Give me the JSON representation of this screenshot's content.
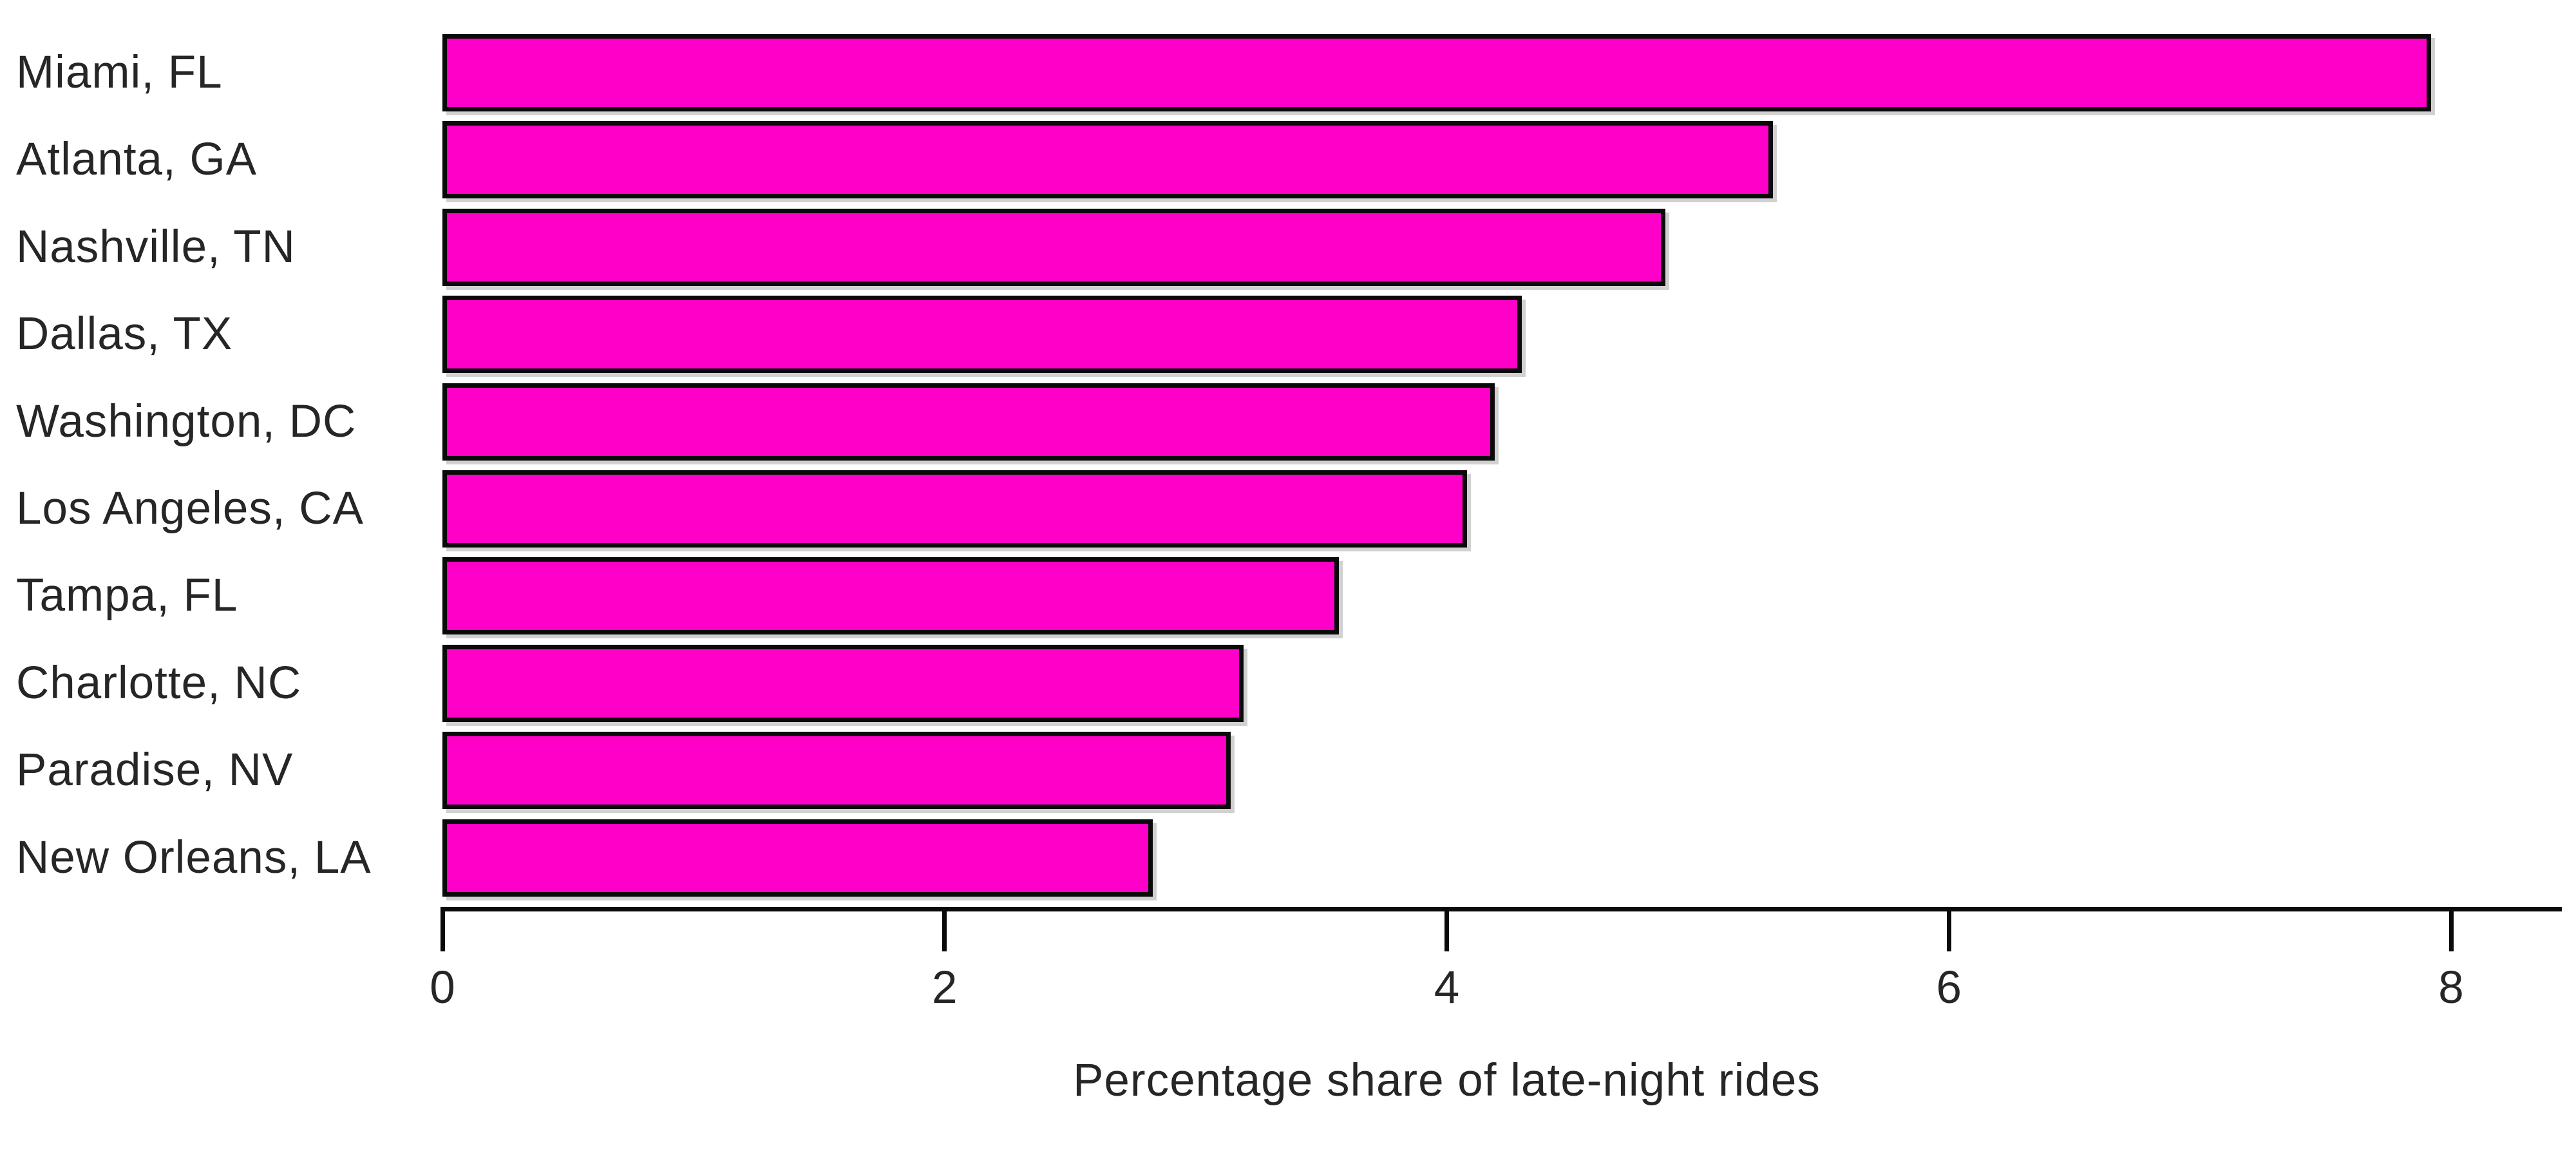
{
  "chart_data": {
    "type": "bar",
    "orientation": "horizontal",
    "title": "",
    "xlabel": "Percentage share of late-night rides",
    "ylabel": "",
    "categories": [
      "Miami, FL",
      "Atlanta, GA",
      "Nashville, TN",
      "Dallas, TX",
      "Washington, DC",
      "Los Angeles, CA",
      "Tampa, FL",
      "Charlotte, NC",
      "Paradise, NV",
      "New Orleans, LA"
    ],
    "values": [
      7.92,
      5.3,
      4.87,
      4.3,
      4.19,
      4.08,
      3.57,
      3.19,
      3.14,
      2.83
    ],
    "xticks": [
      0,
      2,
      4,
      6,
      8
    ],
    "xlim": [
      0,
      8.45
    ],
    "grid": false,
    "legend": false,
    "colors": {
      "bar_fill": "#ff00c8",
      "bar_edge": "#0a0a0a",
      "axis": "#0a0a0a",
      "text": "#262626",
      "background": "#ffffff"
    }
  }
}
